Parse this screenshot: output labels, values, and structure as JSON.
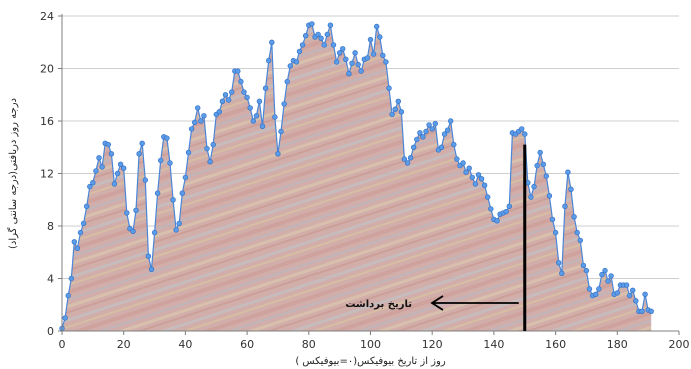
{
  "chart_data": {
    "type": "area",
    "xlabel": "روز از تاریخ بیوفیکس(۰=بیوفیکس )",
    "ylabel": "درجه روز دریافتی(درجه سانتی گراد)",
    "xlim": [
      0,
      200
    ],
    "ylim": [
      0,
      24
    ],
    "x_ticks": [
      "0",
      "20",
      "40",
      "60",
      "80",
      "100",
      "120",
      "140",
      "160",
      "180",
      "200"
    ],
    "y_ticks": [
      "0",
      "4",
      "8",
      "12",
      "16",
      "20",
      "24"
    ],
    "grid": "horizontal",
    "legend": "none",
    "colors": {
      "line": "#4a86d8",
      "marker": "#5b9be8",
      "area": "#c9a9a6",
      "gridline": "#cfcfcf",
      "marker_line": "#000000"
    },
    "annotation": {
      "text": "تاریخ برداشت",
      "x": 150
    },
    "series": [
      {
        "values": [
          [
            0,
            0.2
          ],
          [
            1,
            1
          ],
          [
            2,
            2.7
          ],
          [
            3,
            4
          ],
          [
            4,
            6.8
          ],
          [
            5,
            6.3
          ],
          [
            6,
            7.5
          ],
          [
            7,
            8.2
          ],
          [
            8,
            9.5
          ],
          [
            9,
            11
          ],
          [
            10,
            11.3
          ],
          [
            11,
            12.2
          ],
          [
            12,
            13.2
          ],
          [
            13,
            12.5
          ],
          [
            14,
            14.3
          ],
          [
            15,
            14.2
          ],
          [
            16,
            13.5
          ],
          [
            17,
            11.2
          ],
          [
            18,
            12
          ],
          [
            19,
            12.7
          ],
          [
            20,
            12.4
          ],
          [
            21,
            9
          ],
          [
            22,
            7.8
          ],
          [
            23,
            7.6
          ],
          [
            24,
            9.2
          ],
          [
            25,
            13.5
          ],
          [
            26,
            14.3
          ],
          [
            27,
            11.5
          ],
          [
            28,
            5.7
          ],
          [
            29,
            4.7
          ],
          [
            30,
            7.5
          ],
          [
            31,
            10.5
          ],
          [
            32,
            13
          ],
          [
            33,
            14.8
          ],
          [
            34,
            14.7
          ],
          [
            35,
            12.8
          ],
          [
            36,
            10
          ],
          [
            37,
            7.7
          ],
          [
            38,
            8.2
          ],
          [
            39,
            10.5
          ],
          [
            40,
            11.7
          ],
          [
            41,
            13.6
          ],
          [
            42,
            15.4
          ],
          [
            43,
            15.9
          ],
          [
            44,
            17
          ],
          [
            45,
            16
          ],
          [
            46,
            16.4
          ],
          [
            47,
            13.9
          ],
          [
            48,
            12.9
          ],
          [
            49,
            14.2
          ],
          [
            50,
            16.5
          ],
          [
            51,
            16.7
          ],
          [
            52,
            17.5
          ],
          [
            53,
            18
          ],
          [
            54,
            17.6
          ],
          [
            55,
            18.2
          ],
          [
            56,
            19.8
          ],
          [
            57,
            19.8
          ],
          [
            58,
            19
          ],
          [
            59,
            18.2
          ],
          [
            60,
            17.8
          ],
          [
            61,
            17
          ],
          [
            62,
            16
          ],
          [
            63,
            16.4
          ],
          [
            64,
            17.5
          ],
          [
            65,
            15.6
          ],
          [
            66,
            18.5
          ],
          [
            67,
            20.6
          ],
          [
            68,
            22
          ],
          [
            69,
            16.3
          ],
          [
            70,
            13.5
          ],
          [
            71,
            15.2
          ],
          [
            72,
            17.3
          ],
          [
            73,
            19
          ],
          [
            74,
            20.2
          ],
          [
            75,
            20.6
          ],
          [
            76,
            20.5
          ],
          [
            77,
            21.3
          ],
          [
            78,
            21.8
          ],
          [
            79,
            22.5
          ],
          [
            80,
            23.3
          ],
          [
            81,
            23.4
          ],
          [
            82,
            22.4
          ],
          [
            83,
            22.6
          ],
          [
            84,
            22.3
          ],
          [
            85,
            21.8
          ],
          [
            86,
            22.6
          ],
          [
            87,
            23.3
          ],
          [
            88,
            21.8
          ],
          [
            89,
            20.5
          ],
          [
            90,
            21.2
          ],
          [
            91,
            21.5
          ],
          [
            92,
            20.7
          ],
          [
            93,
            19.6
          ],
          [
            94,
            20.4
          ],
          [
            95,
            21.2
          ],
          [
            96,
            20.3
          ],
          [
            97,
            19.8
          ],
          [
            98,
            20.7
          ],
          [
            99,
            20.8
          ],
          [
            100,
            22.2
          ],
          [
            101,
            21.1
          ],
          [
            102,
            23.2
          ],
          [
            103,
            22.4
          ],
          [
            104,
            21
          ],
          [
            105,
            20.5
          ],
          [
            106,
            18.5
          ],
          [
            107,
            16.5
          ],
          [
            108,
            16.9
          ],
          [
            109,
            17.5
          ],
          [
            110,
            16.7
          ],
          [
            111,
            13.1
          ],
          [
            112,
            12.8
          ],
          [
            113,
            13.2
          ],
          [
            114,
            14
          ],
          [
            115,
            14.6
          ],
          [
            116,
            15.1
          ],
          [
            117,
            14.8
          ],
          [
            118,
            15.2
          ],
          [
            119,
            15.7
          ],
          [
            120,
            15.4
          ],
          [
            121,
            15.8
          ],
          [
            122,
            13.8
          ],
          [
            123,
            14
          ],
          [
            124,
            15
          ],
          [
            125,
            15.3
          ],
          [
            126,
            16
          ],
          [
            127,
            14.2
          ],
          [
            128,
            13.1
          ],
          [
            129,
            12.6
          ],
          [
            130,
            12.8
          ],
          [
            131,
            12.1
          ],
          [
            132,
            12.4
          ],
          [
            133,
            11.7
          ],
          [
            134,
            11.2
          ],
          [
            135,
            11.9
          ],
          [
            136,
            11.6
          ],
          [
            137,
            11.1
          ],
          [
            138,
            10.2
          ],
          [
            139,
            9.3
          ],
          [
            140,
            8.5
          ],
          [
            141,
            8.4
          ],
          [
            142,
            8.9
          ],
          [
            143,
            9
          ],
          [
            144,
            9.1
          ],
          [
            145,
            9.5
          ],
          [
            146,
            15.1
          ],
          [
            147,
            15
          ],
          [
            148,
            15.2
          ],
          [
            149,
            15.4
          ],
          [
            150,
            15
          ],
          [
            151,
            11.3
          ],
          [
            152,
            10.2
          ],
          [
            153,
            11
          ],
          [
            154,
            12.6
          ],
          [
            155,
            13.6
          ],
          [
            156,
            12.7
          ],
          [
            157,
            11.8
          ],
          [
            158,
            10.3
          ],
          [
            159,
            8.5
          ],
          [
            160,
            7.5
          ],
          [
            161,
            5.2
          ],
          [
            162,
            4.4
          ],
          [
            163,
            9.5
          ],
          [
            164,
            12.1
          ],
          [
            165,
            10.8
          ],
          [
            166,
            8.7
          ],
          [
            167,
            7.5
          ],
          [
            168,
            6.9
          ],
          [
            169,
            5
          ],
          [
            170,
            4.6
          ],
          [
            171,
            3.2
          ],
          [
            172,
            2.7
          ],
          [
            173,
            2.8
          ],
          [
            174,
            3.2
          ],
          [
            175,
            4.3
          ],
          [
            176,
            4.6
          ],
          [
            177,
            3.8
          ],
          [
            178,
            4.2
          ],
          [
            179,
            2.8
          ],
          [
            180,
            2.9
          ],
          [
            181,
            3.5
          ],
          [
            182,
            3.5
          ],
          [
            183,
            3.5
          ],
          [
            184,
            2.7
          ],
          [
            185,
            3.1
          ],
          [
            186,
            2.3
          ],
          [
            187,
            1.5
          ],
          [
            188,
            1.5
          ],
          [
            189,
            2.8
          ],
          [
            190,
            1.6
          ],
          [
            191,
            1.5
          ]
        ]
      }
    ]
  }
}
